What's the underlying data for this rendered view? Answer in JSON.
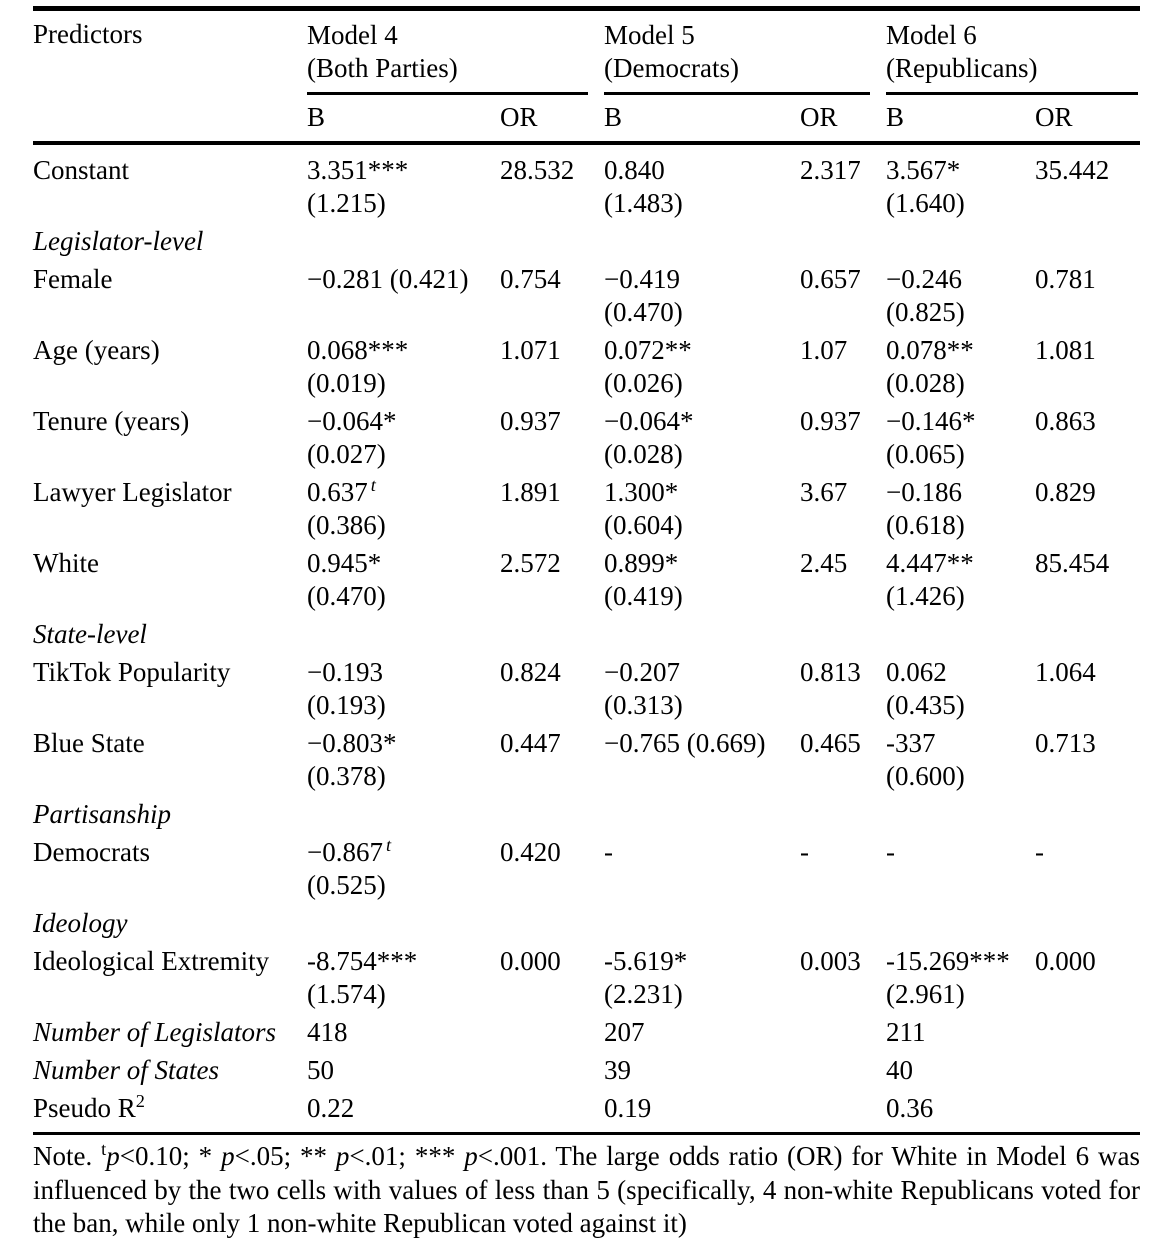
{
  "table": {
    "header": {
      "predictors": "Predictors",
      "models": [
        {
          "name": "Model 4",
          "subtitle": "(Both Parties)",
          "b": "B",
          "or": "OR"
        },
        {
          "name": "Model 5",
          "subtitle": "(Democrats)",
          "b": "B",
          "or": "OR"
        },
        {
          "name": "Model 6",
          "subtitle": "(Republicans)",
          "b": "B",
          "or": "OR"
        }
      ]
    },
    "rows": [
      {
        "type": "data",
        "label": "Constant",
        "cells": [
          {
            "b": "3.351***",
            "se": "(1.215)",
            "or": "28.532"
          },
          {
            "b": "0.840",
            "se": "(1.483)",
            "or": "2.317"
          },
          {
            "b": "3.567*",
            "se": "(1.640)",
            "or": "35.442"
          }
        ]
      },
      {
        "type": "section",
        "label": "Legislator-level"
      },
      {
        "type": "data",
        "label": "Female",
        "cells": [
          {
            "b": "−0.281 (0.421)",
            "se": "",
            "or": "0.754"
          },
          {
            "b": "−0.419",
            "se": "(0.470)",
            "or": "0.657"
          },
          {
            "b": "−0.246",
            "se": "(0.825)",
            "or": "0.781"
          }
        ]
      },
      {
        "type": "data",
        "label": "Age (years)",
        "cells": [
          {
            "b": "0.068***",
            "se": "(0.019)",
            "or": "1.071"
          },
          {
            "b": "0.072**",
            "se": "(0.026)",
            "or": "1.07"
          },
          {
            "b": "0.078**",
            "se": "(0.028)",
            "or": "1.081"
          }
        ]
      },
      {
        "type": "data",
        "label": "Tenure (years)",
        "cells": [
          {
            "b": "−0.064*",
            "se": "(0.027)",
            "or": "0.937"
          },
          {
            "b": "−0.064*",
            "se": "(0.028)",
            "or": "0.937"
          },
          {
            "b": "−0.146*",
            "se": "(0.065)",
            "or": "0.863"
          }
        ]
      },
      {
        "type": "data",
        "label": "Lawyer Legislator",
        "cells": [
          {
            "b": "0.637",
            "sup": "t",
            "se": "(0.386)",
            "or": "1.891"
          },
          {
            "b": "1.300*",
            "se": "(0.604)",
            "or": "3.67"
          },
          {
            "b": "−0.186",
            "se": "(0.618)",
            "or": "0.829"
          }
        ]
      },
      {
        "type": "data",
        "label": "White",
        "cells": [
          {
            "b": "0.945*",
            "se": "(0.470)",
            "or": "2.572"
          },
          {
            "b": "0.899*",
            "se": "(0.419)",
            "or": "2.45"
          },
          {
            "b": "4.447**",
            "se": "(1.426)",
            "or": "85.454"
          }
        ]
      },
      {
        "type": "section",
        "label": "State-level"
      },
      {
        "type": "data",
        "label": "TikTok Popularity",
        "cells": [
          {
            "b": "−0.193",
            "se": "(0.193)",
            "or": "0.824"
          },
          {
            "b": "−0.207",
            "se": "(0.313)",
            "or": "0.813"
          },
          {
            "b": "0.062",
            "se": "(0.435)",
            "or": "1.064"
          }
        ]
      },
      {
        "type": "data",
        "label": "Blue State",
        "cells": [
          {
            "b": "−0.803*",
            "se": "(0.378)",
            "or": "0.447"
          },
          {
            "b": "−0.765 (0.669)",
            "se": "",
            "or": "0.465"
          },
          {
            "b": "-337",
            "se": "(0.600)",
            "or": "0.713"
          }
        ]
      },
      {
        "type": "section",
        "label": "Partisanship"
      },
      {
        "type": "data",
        "label": "Democrats",
        "cells": [
          {
            "b": "−0.867",
            "sup": "t",
            "se": "(0.525)",
            "or": "0.420"
          },
          {
            "b": "-",
            "se": "",
            "or": "-"
          },
          {
            "b": "-",
            "se": "",
            "or": "-"
          }
        ]
      },
      {
        "type": "section",
        "label": "Ideology"
      },
      {
        "type": "data",
        "label": "Ideological Extremity",
        "cells": [
          {
            "b": "-8.754***",
            "se": "(1.574)",
            "or": "0.000"
          },
          {
            "b": "-5.619*",
            "se": "(2.231)",
            "or": "0.003"
          },
          {
            "b": "-15.269***",
            "se": "(2.961)",
            "or": "0.000"
          }
        ]
      },
      {
        "type": "stat",
        "label": "Number of Legislators",
        "label_italic": true,
        "values": [
          "418",
          "207",
          "211"
        ]
      },
      {
        "type": "stat",
        "label": "Number of States",
        "label_italic": true,
        "values": [
          "50",
          "39",
          "40"
        ]
      },
      {
        "type": "stat",
        "label_segments": [
          {
            "text": "Pseudo ",
            "style": "normal"
          },
          {
            "text": "R",
            "style": "italic"
          },
          {
            "text": "2",
            "style": "sup"
          }
        ],
        "values": [
          "0.22",
          "0.19",
          "0.36"
        ]
      }
    ],
    "note_segments": [
      {
        "text": "Note. ",
        "style": "normal"
      },
      {
        "text": "t",
        "style": "sup"
      },
      {
        "text": "p",
        "style": "italic"
      },
      {
        "text": "<0.10; * ",
        "style": "normal"
      },
      {
        "text": "p",
        "style": "italic"
      },
      {
        "text": "<.05; ** ",
        "style": "normal"
      },
      {
        "text": "p",
        "style": "italic"
      },
      {
        "text": "<.01; *** ",
        "style": "normal"
      },
      {
        "text": "p",
        "style": "italic"
      },
      {
        "text": "<.001. The large odds ratio (OR) for White in Model 6 was influenced by the two cells with values of less than 5 (specifically, 4 non-white Republicans voted for the ban, while only 1 non-white Republican voted against it)",
        "style": "normal"
      }
    ]
  }
}
